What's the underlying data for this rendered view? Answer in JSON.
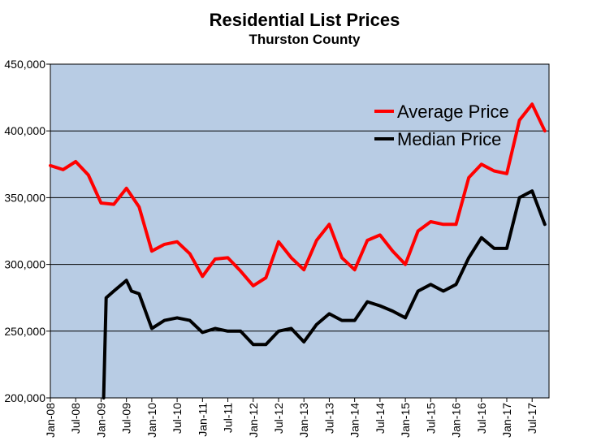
{
  "chart_data": {
    "type": "line",
    "title": "Residential List Prices",
    "subtitle": "Thurston County",
    "xlabel": "",
    "ylabel": "",
    "ylim": [
      200000,
      450000
    ],
    "yticks": [
      200000,
      250000,
      300000,
      350000,
      400000,
      450000
    ],
    "ytick_labels": [
      "200,000",
      "250,000",
      "300,000",
      "350,000",
      "400,000",
      "450,000"
    ],
    "xticks": [
      "Jan-08",
      "Jul-08",
      "Jan-09",
      "Jul-09",
      "Jan-10",
      "Jul-10",
      "Jan-11",
      "Jul-11",
      "Jan-12",
      "Jul-12",
      "Jan-13",
      "Jul-13",
      "Jan-14",
      "Jul-14",
      "Jan-15",
      "Jul-15",
      "Jan-16",
      "Jul-16",
      "Jan-17",
      "Jul-17"
    ],
    "grid": "horizontal",
    "legend": "top-right",
    "plot_background": "#b8cce4",
    "series": [
      {
        "name": "Average Price",
        "color": "#ff0000",
        "x": [
          2008.0,
          2008.25,
          2008.5,
          2008.75,
          2009.0,
          2009.25,
          2009.5,
          2009.75,
          2010.0,
          2010.25,
          2010.5,
          2010.75,
          2011.0,
          2011.25,
          2011.5,
          2011.75,
          2012.0,
          2012.25,
          2012.5,
          2012.75,
          2013.0,
          2013.25,
          2013.5,
          2013.75,
          2014.0,
          2014.25,
          2014.5,
          2014.75,
          2015.0,
          2015.25,
          2015.5,
          2015.75,
          2016.0,
          2016.25,
          2016.5,
          2016.75,
          2017.0,
          2017.25,
          2017.5,
          2017.75
        ],
        "values": [
          374000,
          371000,
          377000,
          367000,
          346000,
          345000,
          357000,
          343000,
          310000,
          315000,
          317000,
          308000,
          291000,
          304000,
          305000,
          295000,
          284000,
          290000,
          317000,
          305000,
          296000,
          318000,
          330000,
          305000,
          296000,
          318000,
          322000,
          310000,
          300000,
          325000,
          332000,
          330000,
          330000,
          365000,
          375000,
          370000,
          368000,
          408000,
          420000,
          400000
        ]
      },
      {
        "name": "Median Price",
        "color": "#000000",
        "x": [
          2009.05,
          2009.1,
          2009.25,
          2009.5,
          2009.6,
          2009.75,
          2010.0,
          2010.25,
          2010.5,
          2010.75,
          2011.0,
          2011.25,
          2011.5,
          2011.75,
          2012.0,
          2012.25,
          2012.5,
          2012.75,
          2013.0,
          2013.25,
          2013.5,
          2013.75,
          2014.0,
          2014.25,
          2014.5,
          2014.75,
          2015.0,
          2015.25,
          2015.5,
          2015.75,
          2016.0,
          2016.25,
          2016.5,
          2016.75,
          2017.0,
          2017.25,
          2017.5,
          2017.75
        ],
        "values": [
          200000,
          275000,
          280000,
          288000,
          280000,
          278000,
          252000,
          258000,
          260000,
          258000,
          249000,
          252000,
          250000,
          250000,
          240000,
          240000,
          250000,
          252000,
          242000,
          255000,
          263000,
          258000,
          258000,
          272000,
          269000,
          265000,
          260000,
          280000,
          285000,
          280000,
          285000,
          305000,
          320000,
          312000,
          312000,
          350000,
          355000,
          330000
        ]
      }
    ]
  }
}
